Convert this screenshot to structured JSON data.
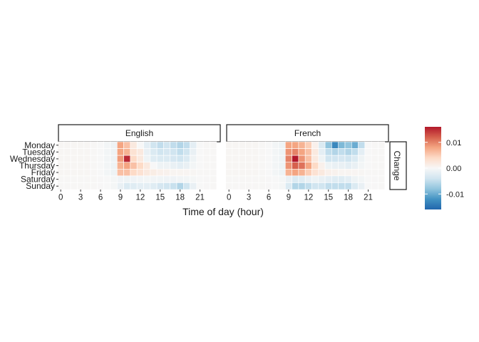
{
  "chart_data": {
    "type": "heatmap",
    "title": "",
    "xlabel": "Time of day (hour)",
    "ylabel": "",
    "facet_strip": "Change",
    "x_ticks": [
      0,
      3,
      6,
      9,
      12,
      15,
      18,
      21
    ],
    "days": [
      "Monday",
      "Tuesday",
      "Wednesday",
      "Thursday",
      "Friday",
      "Saturday",
      "Sunday"
    ],
    "legend": {
      "placement": "right",
      "min": -0.016,
      "max": 0.016,
      "ticks": [
        0.01,
        0.0,
        -0.01
      ],
      "tick_labels": [
        "0.01",
        "0.00",
        "-0.01"
      ],
      "colors": [
        "#2166ac",
        "#4393c3",
        "#92c5de",
        "#d1e5f0",
        "#f7f7f7",
        "#fddbc7",
        "#f4a582",
        "#d6604d",
        "#b2182b"
      ]
    },
    "panels": [
      {
        "name": "English",
        "values": [
          [
            0.0003,
            0.0003,
            0.0003,
            0.0003,
            0.0003,
            0.0002,
            0.0,
            -0.0005,
            -0.001,
            0.008,
            0.006,
            0.002,
            0.0,
            -0.002,
            -0.004,
            -0.005,
            -0.004,
            -0.005,
            -0.006,
            -0.005,
            -0.002,
            0.0,
            0.0002,
            0.0002
          ],
          [
            0.0003,
            0.0003,
            0.0003,
            0.0003,
            0.0003,
            0.0002,
            0.0,
            -0.0005,
            -0.001,
            0.008,
            0.007,
            0.003,
            0.002,
            -0.0015,
            -0.003,
            -0.004,
            -0.0035,
            -0.004,
            -0.005,
            -0.004,
            -0.0015,
            0.0,
            0.0002,
            0.0002
          ],
          [
            0.0003,
            0.0003,
            0.0003,
            0.0003,
            0.0003,
            0.0002,
            0.0,
            -0.0005,
            -0.001,
            0.0085,
            0.015,
            0.004,
            0.002,
            -0.001,
            -0.0025,
            -0.003,
            -0.003,
            -0.0035,
            -0.004,
            -0.003,
            -0.001,
            0.0,
            0.0002,
            0.0002
          ],
          [
            0.0003,
            0.0003,
            0.0003,
            0.0003,
            0.0003,
            0.0002,
            0.0,
            -0.0005,
            -0.001,
            0.007,
            0.008,
            0.006,
            0.004,
            0.002,
            0.0,
            -0.001,
            -0.001,
            -0.0015,
            -0.002,
            -0.0015,
            -0.0005,
            0.0,
            0.0002,
            0.0002
          ],
          [
            0.0003,
            0.0003,
            0.0003,
            0.0003,
            0.0003,
            0.0002,
            0.0,
            -0.0005,
            -0.001,
            0.006,
            0.006,
            0.004,
            0.003,
            0.002,
            0.0015,
            0.001,
            0.0008,
            0.0005,
            0.0005,
            0.0004,
            0.0003,
            0.0002,
            0.0002,
            0.0002
          ],
          [
            0.0002,
            0.0002,
            0.0002,
            0.0002,
            0.0002,
            0.0002,
            0.0001,
            0.0,
            -0.0003,
            -0.0008,
            -0.001,
            -0.0008,
            -0.0006,
            -0.0005,
            -0.0006,
            -0.0007,
            -0.0008,
            -0.0008,
            -0.0006,
            -0.0005,
            -0.0003,
            0.0,
            0.0001,
            0.0002
          ],
          [
            0.0002,
            0.0002,
            0.0002,
            0.0002,
            0.0002,
            0.0002,
            0.0001,
            0.0,
            -0.0003,
            -0.0015,
            -0.003,
            -0.0025,
            -0.002,
            -0.002,
            -0.0025,
            -0.0035,
            -0.004,
            -0.0045,
            -0.006,
            -0.004,
            -0.0015,
            0.0,
            0.0001,
            0.0002
          ]
        ]
      },
      {
        "name": "French",
        "values": [
          [
            0.0003,
            0.0003,
            0.0003,
            0.0003,
            0.0003,
            0.0002,
            0.0,
            -0.0005,
            -0.001,
            0.008,
            0.008,
            0.007,
            0.005,
            0.001,
            -0.003,
            -0.008,
            -0.013,
            -0.009,
            -0.008,
            -0.01,
            -0.005,
            0.0,
            0.0002,
            0.0002
          ],
          [
            0.0003,
            0.0003,
            0.0003,
            0.0003,
            0.0003,
            0.0002,
            0.0,
            -0.0005,
            -0.001,
            0.009,
            0.01,
            0.008,
            0.006,
            0.002,
            -0.002,
            -0.005,
            -0.006,
            -0.005,
            -0.006,
            -0.005,
            -0.002,
            0.0,
            0.0002,
            0.0002
          ],
          [
            0.0003,
            0.0003,
            0.0003,
            0.0003,
            0.0003,
            0.0002,
            0.0,
            -0.0005,
            -0.001,
            0.01,
            0.016,
            0.009,
            0.006,
            0.002,
            -0.001,
            -0.004,
            -0.004,
            -0.0035,
            -0.004,
            -0.003,
            -0.001,
            0.0,
            0.0002,
            0.0002
          ],
          [
            0.0003,
            0.0003,
            0.0003,
            0.0003,
            0.0003,
            0.0002,
            0.0,
            -0.0005,
            -0.001,
            0.009,
            0.012,
            0.011,
            0.008,
            0.004,
            0.001,
            -0.001,
            -0.0015,
            -0.0015,
            -0.002,
            -0.0015,
            -0.0005,
            0.0,
            0.0002,
            0.0002
          ],
          [
            0.0003,
            0.0003,
            0.0003,
            0.0003,
            0.0003,
            0.0002,
            0.0,
            -0.0005,
            -0.001,
            0.007,
            0.008,
            0.007,
            0.005,
            0.003,
            0.002,
            0.001,
            0.0008,
            0.0005,
            0.0005,
            0.0004,
            0.0003,
            0.0002,
            0.0002,
            0.0002
          ],
          [
            0.0002,
            0.0002,
            0.0002,
            0.0002,
            0.0002,
            0.0002,
            0.0001,
            0.0,
            -0.0003,
            -0.0015,
            -0.003,
            -0.0025,
            -0.0015,
            -0.001,
            -0.0015,
            -0.002,
            -0.0025,
            -0.0025,
            -0.002,
            -0.001,
            -0.0005,
            0.0,
            0.0001,
            0.0002
          ],
          [
            0.0002,
            0.0002,
            0.0002,
            0.0002,
            0.0002,
            0.0002,
            0.0001,
            0.0,
            -0.0003,
            -0.003,
            -0.006,
            -0.006,
            -0.005,
            -0.004,
            -0.004,
            -0.005,
            -0.005,
            -0.005,
            -0.005,
            -0.003,
            -0.0015,
            0.0,
            0.0001,
            0.0002
          ]
        ]
      }
    ]
  }
}
